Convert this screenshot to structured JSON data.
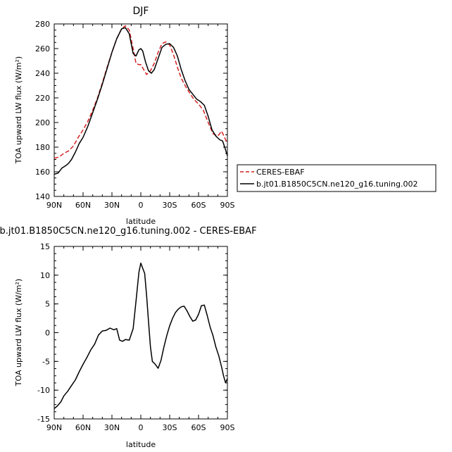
{
  "chart_data": [
    {
      "type": "line",
      "title": "DJF",
      "xlabel": "latitude",
      "ylabel": "TOA upward LW flux (W/m²)",
      "xlim": [
        90,
        -90
      ],
      "ylim": [
        140,
        280
      ],
      "xticks": [
        90,
        60,
        30,
        0,
        -30,
        -60,
        -90
      ],
      "xtick_labels": [
        "90N",
        "60N",
        "30N",
        "0",
        "30S",
        "60S",
        "90S"
      ],
      "yticks": [
        140,
        160,
        180,
        200,
        220,
        240,
        260,
        280
      ],
      "ytick_labels": [
        "140",
        "160",
        "180",
        "200",
        "220",
        "240",
        "260",
        "280"
      ],
      "legend_position": "right",
      "series": [
        {
          "name": "CERES-EBAF",
          "color": "#d62020",
          "dash": "dashed",
          "x": [
            90,
            85,
            80,
            75,
            70,
            65,
            60,
            55,
            50,
            45,
            40,
            35,
            30,
            25,
            20,
            16,
            12,
            8,
            5,
            2,
            0,
            -3,
            -6,
            -10,
            -14,
            -18,
            -22,
            -26,
            -30,
            -34,
            -38,
            -42,
            -46,
            -50,
            -55,
            -60,
            -65,
            -70,
            -75,
            -80,
            -84,
            -87,
            -90
          ],
          "y": [
            171,
            172,
            175,
            177,
            181,
            188,
            194,
            201,
            210,
            220,
            232,
            245,
            257,
            268,
            276,
            278.5,
            275,
            260,
            248,
            247,
            247,
            243,
            239,
            242,
            248,
            257,
            264,
            265.5,
            263,
            255,
            245,
            236,
            230,
            225,
            219,
            215,
            210,
            200,
            191,
            189,
            193,
            188,
            183
          ]
        },
        {
          "name": "b.jt01.B1850C5CN.ne120_g16.tuning.002",
          "color": "#000000",
          "dash": "solid",
          "x": [
            90,
            86,
            82,
            78,
            75,
            72,
            68,
            64,
            60,
            55,
            50,
            45,
            40,
            35,
            30,
            25,
            20,
            16,
            12,
            8,
            5,
            2,
            0,
            -2,
            -5,
            -8,
            -11,
            -14,
            -18,
            -22,
            -26,
            -30,
            -34,
            -38,
            -42,
            -46,
            -50,
            -54,
            -58,
            -62,
            -66,
            -70,
            -74,
            -78,
            -82,
            -85,
            -88,
            -90
          ],
          "y": [
            158,
            159,
            163,
            165,
            167,
            170,
            176,
            183,
            188,
            197,
            208,
            219,
            231,
            244,
            257,
            268,
            276,
            277,
            272,
            256,
            254,
            259,
            260,
            258,
            249,
            242,
            240,
            243,
            252,
            261,
            263.5,
            264,
            261,
            254,
            243,
            234,
            227,
            223,
            219,
            217,
            214,
            205,
            194,
            189,
            186,
            185,
            178,
            173
          ]
        }
      ]
    },
    {
      "type": "line",
      "title": "b.jt01.B1850C5CN.ne120_g16.tuning.002 - CERES-EBAF",
      "xlabel": "latitude",
      "ylabel": "TOA upward LW flux (W/m²)",
      "xlim": [
        90,
        -90
      ],
      "ylim": [
        -15,
        15
      ],
      "xticks": [
        90,
        60,
        30,
        0,
        -30,
        -60,
        -90
      ],
      "xtick_labels": [
        "90N",
        "60N",
        "30N",
        "0",
        "30S",
        "60S",
        "90S"
      ],
      "yticks": [
        -15,
        -10,
        -5,
        0,
        5,
        10,
        15
      ],
      "ytick_labels": [
        "-15",
        "-10",
        "-5",
        "0",
        "5",
        "10",
        "15"
      ],
      "series": [
        {
          "color": "#000000",
          "dash": "solid",
          "x": [
            90,
            87,
            83,
            80,
            76,
            72,
            68,
            64,
            60,
            56,
            52,
            48,
            44,
            40,
            36,
            32,
            28,
            25,
            22,
            19,
            16,
            12,
            8,
            5,
            2,
            0,
            -2,
            -4,
            -6,
            -8,
            -10,
            -12,
            -15,
            -18,
            -21,
            -24,
            -27,
            -30,
            -33,
            -36,
            -39,
            -42,
            -45,
            -48,
            -51,
            -54,
            -57,
            -60,
            -63,
            -66,
            -69,
            -72,
            -75,
            -78,
            -81,
            -84,
            -86,
            -88,
            -90
          ],
          "y": [
            -13.2,
            -12.8,
            -12,
            -11,
            -10.2,
            -9.2,
            -8.2,
            -6.8,
            -5.5,
            -4.3,
            -3,
            -2,
            -0.4,
            0.3,
            0.4,
            0.8,
            0.5,
            0.7,
            -1.3,
            -1.5,
            -1.2,
            -1.3,
            0.7,
            5.5,
            10.5,
            12.1,
            11.2,
            10.3,
            6.5,
            2,
            -2.5,
            -5,
            -5.5,
            -6.2,
            -4.8,
            -2.5,
            -0.5,
            1.2,
            2.5,
            3.5,
            4.1,
            4.5,
            4.6,
            3.8,
            2.8,
            2,
            2.2,
            3.2,
            4.7,
            4.8,
            3,
            1,
            -0.5,
            -2.5,
            -4,
            -6,
            -7.5,
            -8.7,
            -8
          ]
        }
      ]
    }
  ]
}
